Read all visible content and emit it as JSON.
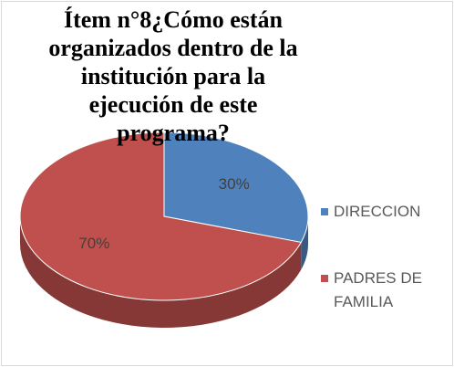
{
  "chart_data": {
    "type": "pie",
    "title": "Ítem n°8¿Cómo están organizados dentro de la institución para la ejecución de este programa?",
    "categories": [
      "DIRECCION",
      "PADRES DE FAMILIA"
    ],
    "values": [
      30,
      70
    ],
    "value_labels": [
      "30%",
      "70%"
    ],
    "colors": [
      "#4f81bd",
      "#c0504d"
    ],
    "legend": "right"
  }
}
